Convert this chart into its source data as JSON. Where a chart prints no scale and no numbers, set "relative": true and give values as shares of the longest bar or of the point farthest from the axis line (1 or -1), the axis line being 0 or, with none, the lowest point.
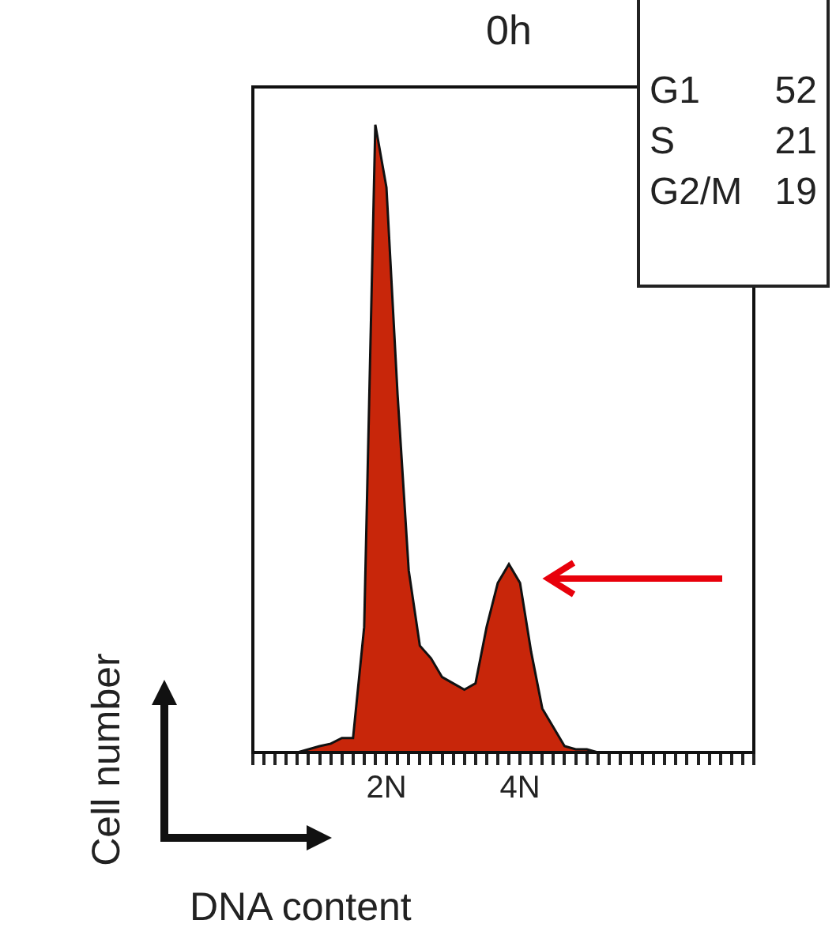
{
  "chart_data": {
    "type": "area",
    "title": "0h",
    "xlabel": "DNA content",
    "ylabel": "Cell number",
    "relative": true,
    "categories": [
      null,
      null,
      null,
      null,
      null,
      null,
      null,
      null,
      null,
      null,
      null,
      null,
      "2N",
      null,
      null,
      null,
      null,
      null,
      null,
      null,
      null,
      null,
      null,
      null,
      "4N",
      null,
      null,
      null,
      null,
      null,
      null,
      null,
      null,
      null,
      null,
      null,
      null,
      null,
      null,
      null,
      null,
      null,
      null,
      null,
      null,
      null
    ],
    "series": [
      {
        "color": "#c8260a",
        "values": [
          0,
          0,
          0,
          0,
          0,
          0.005,
          0.01,
          0.014,
          0.023,
          0.023,
          0.2,
          1,
          0.9,
          0.57,
          0.29,
          0.17,
          0.15,
          0.12,
          0.11,
          0.1,
          0.11,
          0.2,
          0.27,
          0.3,
          0.27,
          0.16,
          0.07,
          0.04,
          0.01,
          0.005,
          0.005,
          0,
          0,
          0,
          0,
          0,
          0,
          0,
          0,
          0,
          0,
          0,
          0,
          0,
          0,
          0
        ]
      }
    ],
    "annotations": [
      "G1",
      "52",
      "S",
      "21",
      "G2/M",
      "19"
    ],
    "grid": false,
    "legend": false
  }
}
